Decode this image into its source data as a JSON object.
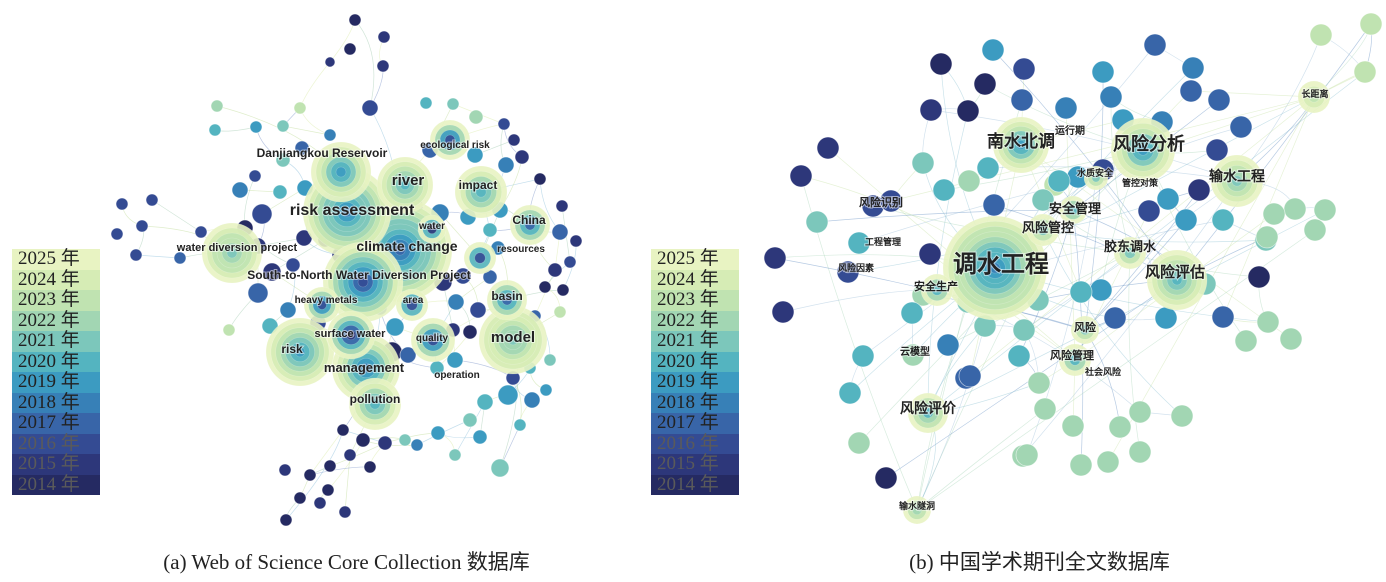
{
  "colors": {
    "year_scale": [
      "#e8f3c2",
      "#d6ecb5",
      "#c0e3b1",
      "#a2d6b3",
      "#7cc7bb",
      "#54b4c0",
      "#3c9bc1",
      "#3780b7",
      "#3865a8",
      "#344b93",
      "#2d377a",
      "#252a62"
    ]
  },
  "legend": {
    "years": [
      "2025 年",
      "2024 年",
      "2023 年",
      "2022 年",
      "2021 年",
      "2020 年",
      "2019 年",
      "2018 年",
      "2017 年",
      "2016 年",
      "2015 年",
      "2014 年"
    ]
  },
  "panel_a": {
    "caption": "(a) Web of Science Core Collection 数据库",
    "keywords": [
      {
        "text": "Danjiangkou Reservoir"
      },
      {
        "text": "ecological risk"
      },
      {
        "text": "river"
      },
      {
        "text": "impact"
      },
      {
        "text": "risk assessment"
      },
      {
        "text": "water"
      },
      {
        "text": "China"
      },
      {
        "text": "water diversion project"
      },
      {
        "text": "climate change"
      },
      {
        "text": "resources"
      },
      {
        "text": "South-to-North Water Diversion Project"
      },
      {
        "text": "heavy metals"
      },
      {
        "text": "area"
      },
      {
        "text": "basin"
      },
      {
        "text": "surface water"
      },
      {
        "text": "quality"
      },
      {
        "text": "model"
      },
      {
        "text": "risk"
      },
      {
        "text": "management"
      },
      {
        "text": "operation"
      },
      {
        "text": "pollution"
      }
    ]
  },
  "panel_b": {
    "caption": "(b) 中国学术期刊全文数据库",
    "keywords": [
      {
        "text": "南水北调"
      },
      {
        "text": "运行期"
      },
      {
        "text": "风险分析"
      },
      {
        "text": "长距离"
      },
      {
        "text": "水质安全"
      },
      {
        "text": "管控对策"
      },
      {
        "text": "输水工程"
      },
      {
        "text": "风险识别"
      },
      {
        "text": "安全管理"
      },
      {
        "text": "工程管理"
      },
      {
        "text": "风险管控"
      },
      {
        "text": "胶东调水"
      },
      {
        "text": "风险因素"
      },
      {
        "text": "调水工程"
      },
      {
        "text": "风险评估"
      },
      {
        "text": "安全生产"
      },
      {
        "text": "风险"
      },
      {
        "text": "云模型"
      },
      {
        "text": "风险管理"
      },
      {
        "text": "社会风险"
      },
      {
        "text": "风险评价"
      },
      {
        "text": "输水隧洞"
      }
    ]
  }
}
